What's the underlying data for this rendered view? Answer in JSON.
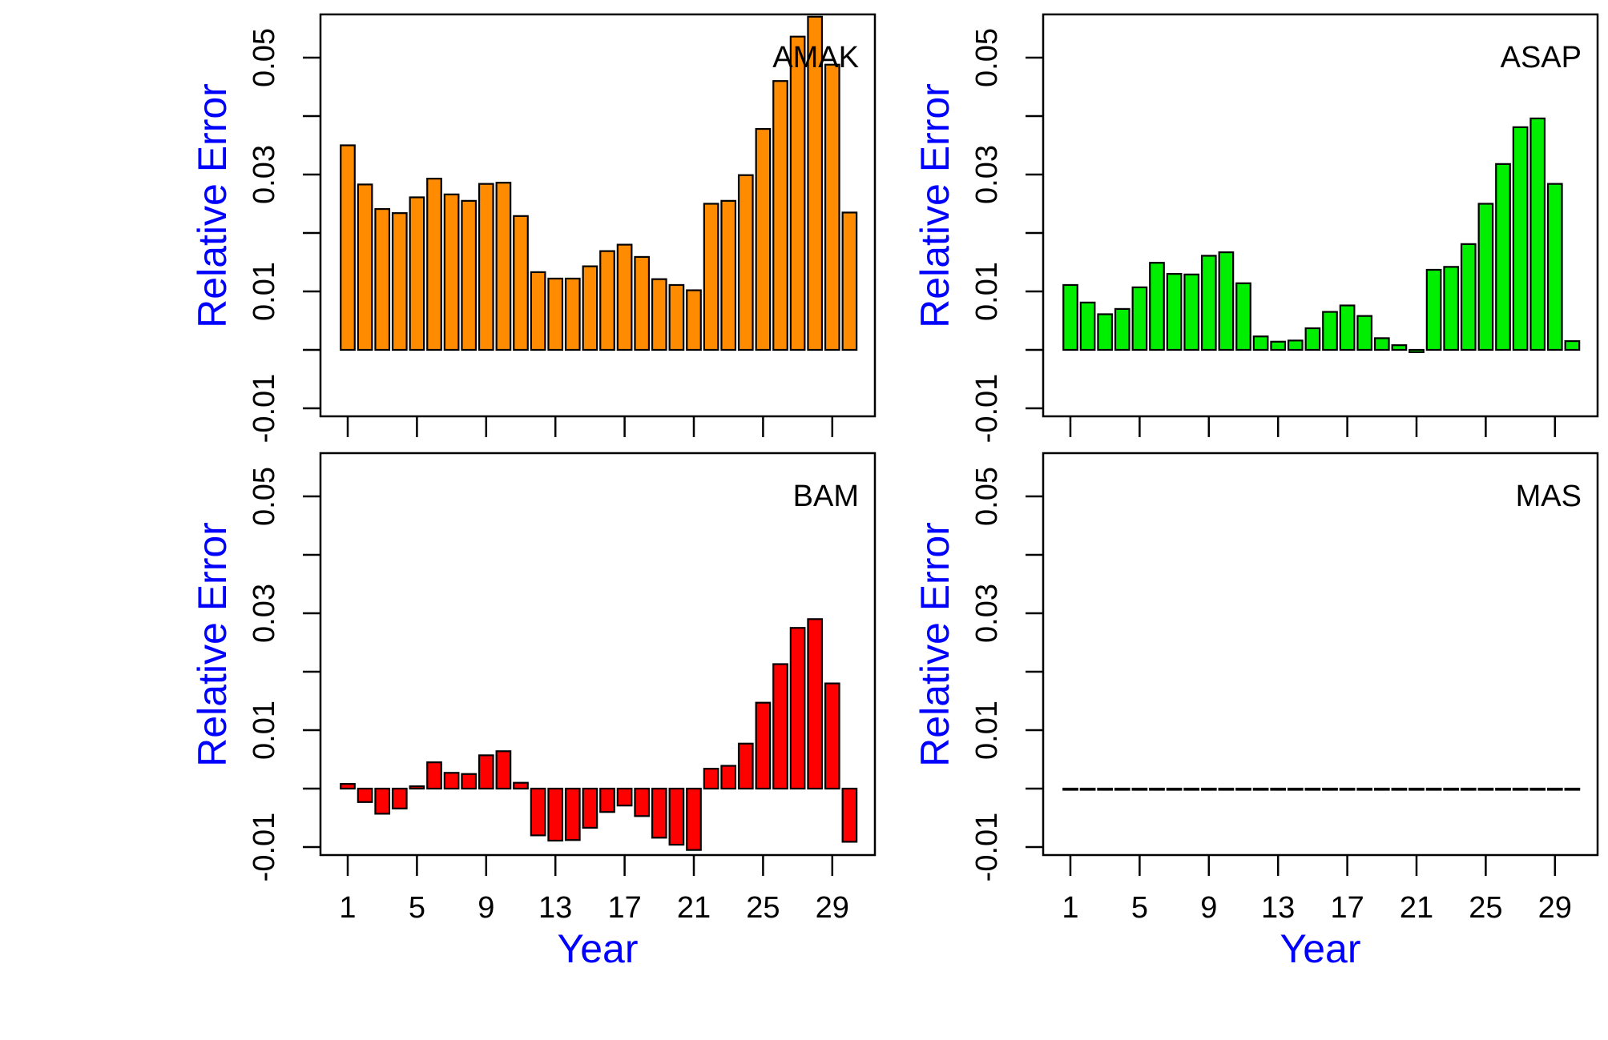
{
  "figure": {
    "x_axis_title": "Year",
    "y_axis_title": "Relative Error"
  },
  "chart_data": [
    {
      "type": "bar",
      "panel": "AMAK",
      "color": "#ff8c00",
      "xlabel": "",
      "ylabel": "Relative Error",
      "ylim": [
        -0.01,
        0.057
      ],
      "yticks": [
        -0.01,
        0,
        0.01,
        0.02,
        0.03,
        0.04,
        0.05
      ],
      "ytick_labels": [
        "-0.01",
        "",
        "0.01",
        "",
        "0.03",
        "",
        "0.05"
      ],
      "x": [
        1,
        2,
        3,
        4,
        5,
        6,
        7,
        8,
        9,
        10,
        11,
        12,
        13,
        14,
        15,
        16,
        17,
        18,
        19,
        20,
        21,
        22,
        23,
        24,
        25,
        26,
        27,
        28,
        29,
        30
      ],
      "xtick_labels": [],
      "values": [
        0.035,
        0.0283,
        0.0241,
        0.0234,
        0.0261,
        0.0293,
        0.0266,
        0.0255,
        0.0284,
        0.0286,
        0.0229,
        0.0133,
        0.0122,
        0.0122,
        0.0143,
        0.0169,
        0.018,
        0.0159,
        0.0121,
        0.0111,
        0.0102,
        0.025,
        0.0255,
        0.0299,
        0.0378,
        0.046,
        0.0536,
        0.057,
        0.0488,
        0.0235
      ]
    },
    {
      "type": "bar",
      "panel": "ASAP",
      "color": "#00ee00",
      "xlabel": "",
      "ylabel": "Relative Error",
      "ylim": [
        -0.01,
        0.057
      ],
      "yticks": [
        -0.01,
        0,
        0.01,
        0.02,
        0.03,
        0.04,
        0.05
      ],
      "ytick_labels": [
        "-0.01",
        "",
        "0.01",
        "",
        "0.03",
        "",
        "0.05"
      ],
      "x": [
        1,
        2,
        3,
        4,
        5,
        6,
        7,
        8,
        9,
        10,
        11,
        12,
        13,
        14,
        15,
        16,
        17,
        18,
        19,
        20,
        21,
        22,
        23,
        24,
        25,
        26,
        27,
        28,
        29,
        30
      ],
      "xtick_labels": [],
      "values": [
        0.0111,
        0.0081,
        0.0061,
        0.007,
        0.0107,
        0.0149,
        0.013,
        0.0129,
        0.0161,
        0.0167,
        0.0114,
        0.0023,
        0.0014,
        0.0016,
        0.0037,
        0.0065,
        0.0076,
        0.0058,
        0.002,
        0.0008,
        -0.0004,
        0.0137,
        0.0142,
        0.0181,
        0.025,
        0.0318,
        0.0381,
        0.0396,
        0.0284,
        0.0015
      ]
    },
    {
      "type": "bar",
      "panel": "BAM",
      "color": "#ff0000",
      "xlabel": "Year",
      "ylabel": "Relative Error",
      "ylim": [
        -0.01,
        0.057
      ],
      "yticks": [
        -0.01,
        0,
        0.01,
        0.02,
        0.03,
        0.04,
        0.05
      ],
      "ytick_labels": [
        "-0.01",
        "",
        "0.01",
        "",
        "0.03",
        "",
        "0.05"
      ],
      "x": [
        1,
        2,
        3,
        4,
        5,
        6,
        7,
        8,
        9,
        10,
        11,
        12,
        13,
        14,
        15,
        16,
        17,
        18,
        19,
        20,
        21,
        22,
        23,
        24,
        25,
        26,
        27,
        28,
        29,
        30
      ],
      "xtick_labels": [
        "1",
        "5",
        "9",
        "13",
        "17",
        "21",
        "25",
        "29"
      ],
      "values": [
        0.0008,
        -0.0023,
        -0.0043,
        -0.0034,
        0.0004,
        0.0045,
        0.0027,
        0.0025,
        0.0057,
        0.0064,
        0.001,
        -0.008,
        -0.0089,
        -0.0088,
        -0.0067,
        -0.004,
        -0.0029,
        -0.0047,
        -0.0084,
        -0.0096,
        -0.0105,
        0.0034,
        0.0039,
        0.0077,
        0.0147,
        0.0213,
        0.0275,
        0.029,
        0.018,
        -0.0091
      ]
    },
    {
      "type": "bar",
      "panel": "MAS",
      "color": "#0000ff",
      "xlabel": "Year",
      "ylabel": "Relative Error",
      "ylim": [
        -0.01,
        0.057
      ],
      "yticks": [
        -0.01,
        0,
        0.01,
        0.02,
        0.03,
        0.04,
        0.05
      ],
      "ytick_labels": [
        "-0.01",
        "",
        "0.01",
        "",
        "0.03",
        "",
        "0.05"
      ],
      "x": [
        1,
        2,
        3,
        4,
        5,
        6,
        7,
        8,
        9,
        10,
        11,
        12,
        13,
        14,
        15,
        16,
        17,
        18,
        19,
        20,
        21,
        22,
        23,
        24,
        25,
        26,
        27,
        28,
        29,
        30
      ],
      "xtick_labels": [
        "1",
        "5",
        "9",
        "13",
        "17",
        "21",
        "25",
        "29"
      ],
      "values": [
        0,
        0,
        0,
        0,
        0,
        0,
        0,
        0,
        0,
        0,
        0,
        0,
        0,
        0,
        0,
        0,
        0,
        0,
        0,
        0,
        0,
        0,
        0,
        0,
        0,
        0,
        0,
        0,
        0,
        0
      ]
    }
  ]
}
